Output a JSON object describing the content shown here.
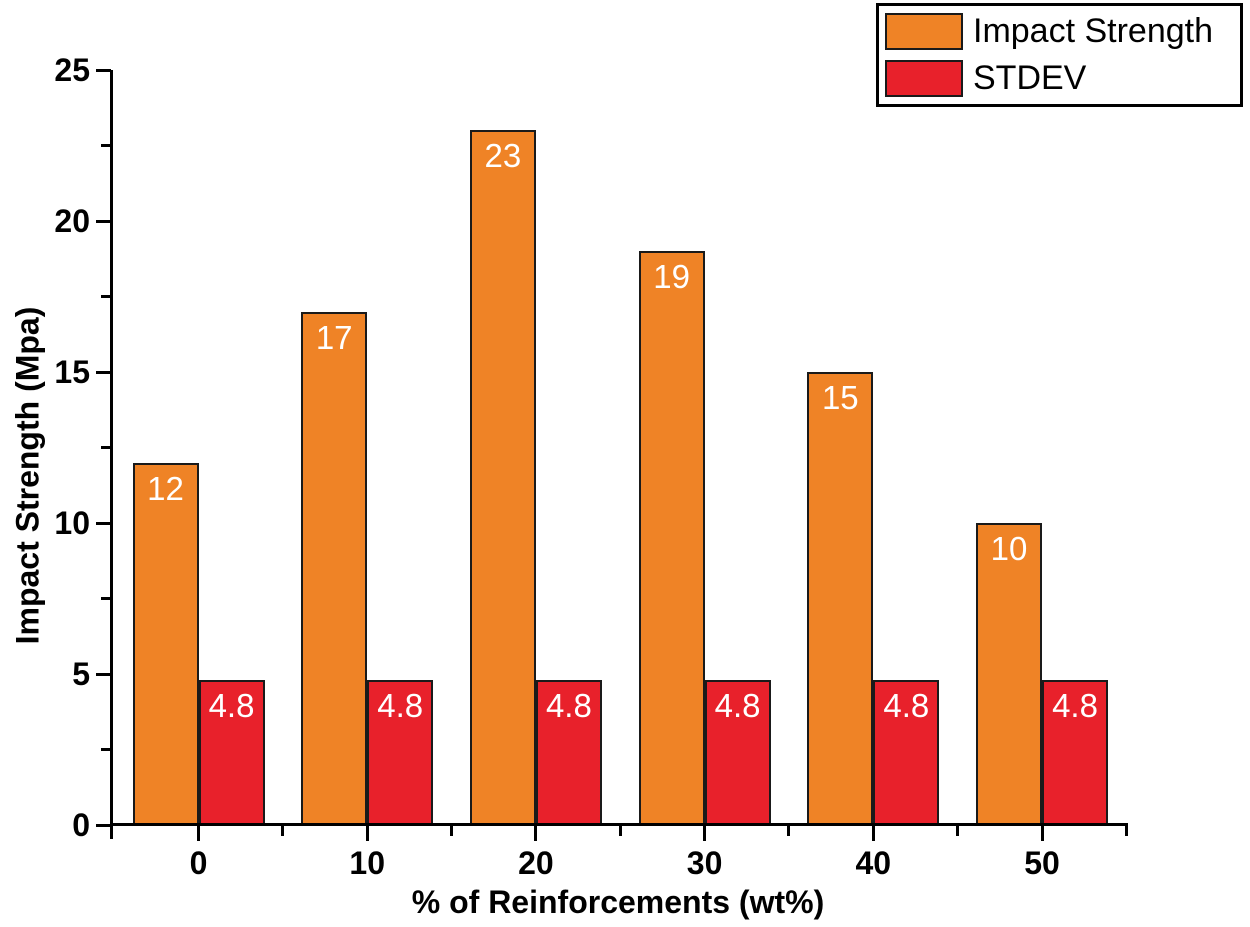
{
  "chart_data": {
    "type": "bar",
    "title": "",
    "categories": [
      "0",
      "10",
      "20",
      "30",
      "40",
      "50"
    ],
    "series": [
      {
        "name": "Impact Strength",
        "color": "#EF8326",
        "values": [
          12,
          17,
          23,
          19,
          15,
          10
        ],
        "bar_labels": [
          "12",
          "17",
          "23",
          "19",
          "15",
          "10"
        ]
      },
      {
        "name": "STDEV",
        "color": "#E8212B",
        "values": [
          4.8,
          4.8,
          4.8,
          4.8,
          4.8,
          4.8
        ],
        "bar_labels": [
          "4.8",
          "4.8",
          "4.8",
          "4.8",
          "4.8",
          "4.8"
        ]
      }
    ],
    "xlabel": "% of Reinforcements (wt%)",
    "ylabel": "Impact Strength (Mpa)",
    "ylim": [
      0,
      25
    ],
    "y_major_ticks": [
      "0",
      "5",
      "10",
      "15",
      "20",
      "25"
    ],
    "y_major_tick_values": [
      0,
      5,
      10,
      15,
      20,
      25
    ],
    "y_minor_tick_values": [
      2.5,
      7.5,
      12.5,
      17.5,
      22.5
    ],
    "grid": false,
    "legend_position": "top-right",
    "bar_label_color": "#FFFFFF",
    "bar_border_color": "#1A1A1A",
    "axis_color": "#000000",
    "background_color": "#FFFFFF"
  }
}
